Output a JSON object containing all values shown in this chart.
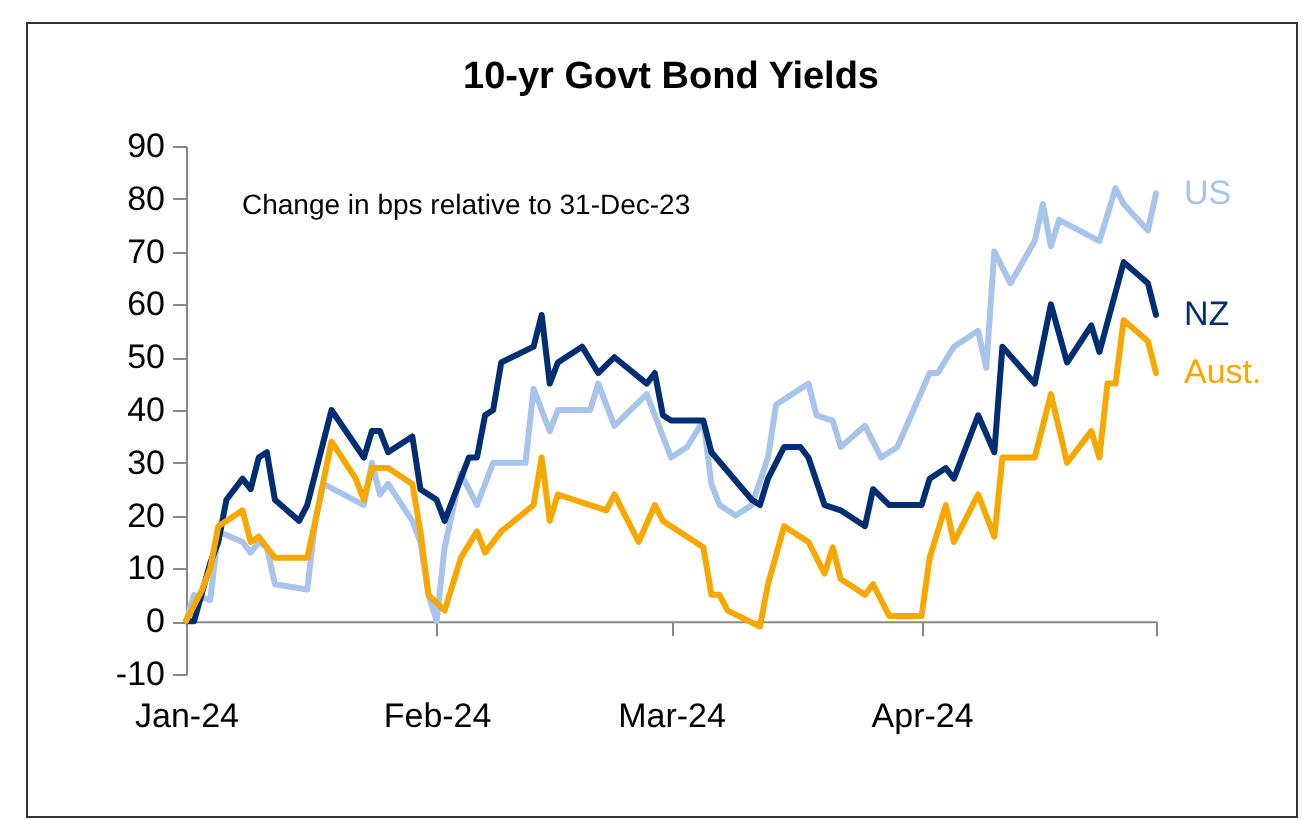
{
  "chart_data": {
    "type": "line",
    "title": "10-yr Govt Bond Yields",
    "annotations": [
      "Change in bps relative to  31-Dec-23"
    ],
    "xlim": [
      "2024-01-01",
      "2024-04-30"
    ],
    "xticks": [
      {
        "value": "2024-01-01",
        "label": "Jan-24"
      },
      {
        "value": "2024-02-01",
        "label": "Feb-24"
      },
      {
        "value": "2024-03-01",
        "label": "Mar-24"
      },
      {
        "value": "2024-04-01",
        "label": "Apr-24"
      },
      {
        "value": "2024-04-30",
        "label": null
      }
    ],
    "ylim": [
      -10,
      90
    ],
    "yticks": [
      -10,
      0,
      10,
      20,
      30,
      40,
      50,
      60,
      70,
      80,
      90
    ],
    "grid": false,
    "line_style": "solid",
    "series": [
      {
        "name": "US",
        "color": "#a9c4eb",
        "x": [
          "2024-01-01",
          "2024-01-02",
          "2024-01-04",
          "2024-01-05",
          "2024-01-08",
          "2024-01-09",
          "2024-01-10",
          "2024-01-11",
          "2024-01-12",
          "2024-01-16",
          "2024-01-17",
          "2024-01-18",
          "2024-01-23",
          "2024-01-24",
          "2024-01-25",
          "2024-01-26",
          "2024-01-29",
          "2024-01-30",
          "2024-01-31",
          "2024-02-01",
          "2024-02-02",
          "2024-02-04",
          "2024-02-06",
          "2024-02-08",
          "2024-02-12",
          "2024-02-13",
          "2024-02-15",
          "2024-02-16",
          "2024-02-20",
          "2024-02-21",
          "2024-02-23",
          "2024-02-27",
          "2024-03-01",
          "2024-03-03",
          "2024-03-05",
          "2024-03-06",
          "2024-03-07",
          "2024-03-09",
          "2024-03-11",
          "2024-03-13",
          "2024-03-14",
          "2024-03-18",
          "2024-03-19",
          "2024-03-21",
          "2024-03-22",
          "2024-03-25",
          "2024-03-27",
          "2024-03-29",
          "2024-04-02",
          "2024-04-03",
          "2024-04-05",
          "2024-04-08",
          "2024-04-09",
          "2024-04-10",
          "2024-04-12",
          "2024-04-15",
          "2024-04-16",
          "2024-04-17",
          "2024-04-18",
          "2024-04-23",
          "2024-04-25",
          "2024-04-26",
          "2024-04-29",
          "2024-04-30"
        ],
        "values": [
          0,
          5,
          4,
          17,
          15,
          13,
          15,
          14,
          7,
          6,
          19,
          26,
          22,
          30,
          24,
          26,
          19,
          15,
          5,
          0,
          14,
          28,
          22,
          30,
          30,
          44,
          36,
          40,
          40,
          45,
          37,
          43,
          31,
          33,
          38,
          26,
          22,
          20,
          22,
          31,
          41,
          45,
          39,
          38,
          33,
          37,
          31,
          33,
          47,
          47,
          52,
          55,
          48,
          70,
          64,
          72,
          79,
          71,
          76,
          72,
          82,
          79,
          74,
          81
        ]
      },
      {
        "name": "NZ",
        "color": "#002e72",
        "x": [
          "2024-01-01",
          "2024-01-02",
          "2024-01-04",
          "2024-01-05",
          "2024-01-06",
          "2024-01-08",
          "2024-01-09",
          "2024-01-10",
          "2024-01-11",
          "2024-01-12",
          "2024-01-15",
          "2024-01-16",
          "2024-01-19",
          "2024-01-23",
          "2024-01-24",
          "2024-01-25",
          "2024-01-26",
          "2024-01-29",
          "2024-01-30",
          "2024-02-01",
          "2024-02-02",
          "2024-02-04",
          "2024-02-05",
          "2024-02-06",
          "2024-02-07",
          "2024-02-08",
          "2024-02-09",
          "2024-02-13",
          "2024-02-14",
          "2024-02-15",
          "2024-02-16",
          "2024-02-19",
          "2024-02-21",
          "2024-02-23",
          "2024-02-27",
          "2024-02-28",
          "2024-02-29",
          "2024-03-01",
          "2024-03-05",
          "2024-03-06",
          "2024-03-11",
          "2024-03-12",
          "2024-03-13",
          "2024-03-15",
          "2024-03-17",
          "2024-03-18",
          "2024-03-20",
          "2024-03-22",
          "2024-03-25",
          "2024-03-26",
          "2024-03-28",
          "2024-04-01",
          "2024-04-02",
          "2024-04-04",
          "2024-04-05",
          "2024-04-08",
          "2024-04-10",
          "2024-04-11",
          "2024-04-15",
          "2024-04-17",
          "2024-04-19",
          "2024-04-22",
          "2024-04-23",
          "2024-04-26",
          "2024-04-29",
          "2024-04-30"
        ],
        "values": [
          0,
          0,
          11,
          15,
          23,
          27,
          25,
          31,
          32,
          23,
          19,
          22,
          40,
          31,
          36,
          36,
          32,
          35,
          25,
          23,
          19,
          27,
          31,
          31,
          39,
          40,
          49,
          52,
          58,
          45,
          49,
          52,
          47,
          50,
          45,
          47,
          39,
          38,
          38,
          32,
          23,
          22,
          27,
          33,
          33,
          31,
          22,
          21,
          18,
          25,
          22,
          22,
          27,
          29,
          27,
          39,
          32,
          52,
          45,
          60,
          49,
          56,
          51,
          68,
          64,
          58
        ]
      },
      {
        "name": "Aust.",
        "color": "#f7a800",
        "x": [
          "2024-01-01",
          "2024-01-03",
          "2024-01-04",
          "2024-01-05",
          "2024-01-08",
          "2024-01-09",
          "2024-01-10",
          "2024-01-11",
          "2024-01-12",
          "2024-01-16",
          "2024-01-17",
          "2024-01-19",
          "2024-01-22",
          "2024-01-23",
          "2024-01-24",
          "2024-01-26",
          "2024-01-29",
          "2024-01-30",
          "2024-01-31",
          "2024-02-02",
          "2024-02-04",
          "2024-02-06",
          "2024-02-07",
          "2024-02-09",
          "2024-02-13",
          "2024-02-14",
          "2024-02-15",
          "2024-02-16",
          "2024-02-20",
          "2024-02-22",
          "2024-02-23",
          "2024-02-26",
          "2024-02-28",
          "2024-02-29",
          "2024-03-01",
          "2024-03-05",
          "2024-03-06",
          "2024-03-07",
          "2024-03-08",
          "2024-03-12",
          "2024-03-13",
          "2024-03-15",
          "2024-03-18",
          "2024-03-20",
          "2024-03-21",
          "2024-03-22",
          "2024-03-25",
          "2024-03-26",
          "2024-03-28",
          "2024-04-01",
          "2024-04-02",
          "2024-04-04",
          "2024-04-05",
          "2024-04-08",
          "2024-04-10",
          "2024-04-11",
          "2024-04-15",
          "2024-04-17",
          "2024-04-19",
          "2024-04-22",
          "2024-04-23",
          "2024-04-24",
          "2024-04-25",
          "2024-04-26",
          "2024-04-29",
          "2024-04-30"
        ],
        "values": [
          0,
          6,
          10,
          18,
          21,
          15,
          16,
          14,
          12,
          12,
          19,
          34,
          27,
          23,
          29,
          29,
          26,
          17,
          5,
          2,
          12,
          17,
          13,
          17,
          22,
          31,
          19,
          24,
          22,
          21,
          24,
          15,
          22,
          19,
          18,
          14,
          5,
          5,
          2,
          -1,
          7,
          18,
          15,
          9,
          14,
          8,
          5,
          7,
          1,
          1,
          12,
          22,
          15,
          24,
          16,
          31,
          31,
          43,
          30,
          36,
          31,
          45,
          45,
          57,
          53,
          47
        ]
      }
    ]
  }
}
